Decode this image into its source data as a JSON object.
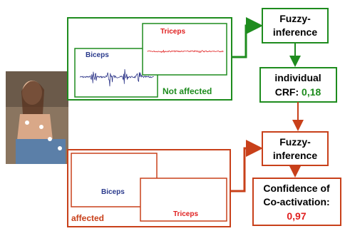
{
  "panels": {
    "not_affected": {
      "label": "Not affected",
      "plots": {
        "biceps": "Biceps",
        "triceps": "Triceps"
      }
    },
    "affected": {
      "label": "affected",
      "plots": {
        "biceps": "Biceps",
        "triceps": "Triceps"
      }
    }
  },
  "flow": {
    "fuzzy_1": {
      "lines": [
        "Fuzzy-",
        "inference"
      ]
    },
    "crf": {
      "lines": [
        "individual",
        "CRF: "
      ],
      "value": "0,18"
    },
    "fuzzy_2": {
      "lines": [
        "Fuzzy-",
        "inference"
      ]
    },
    "confidence": {
      "lines": [
        "Confidence of",
        "Co-activation:"
      ],
      "value": "0,97"
    }
  }
}
